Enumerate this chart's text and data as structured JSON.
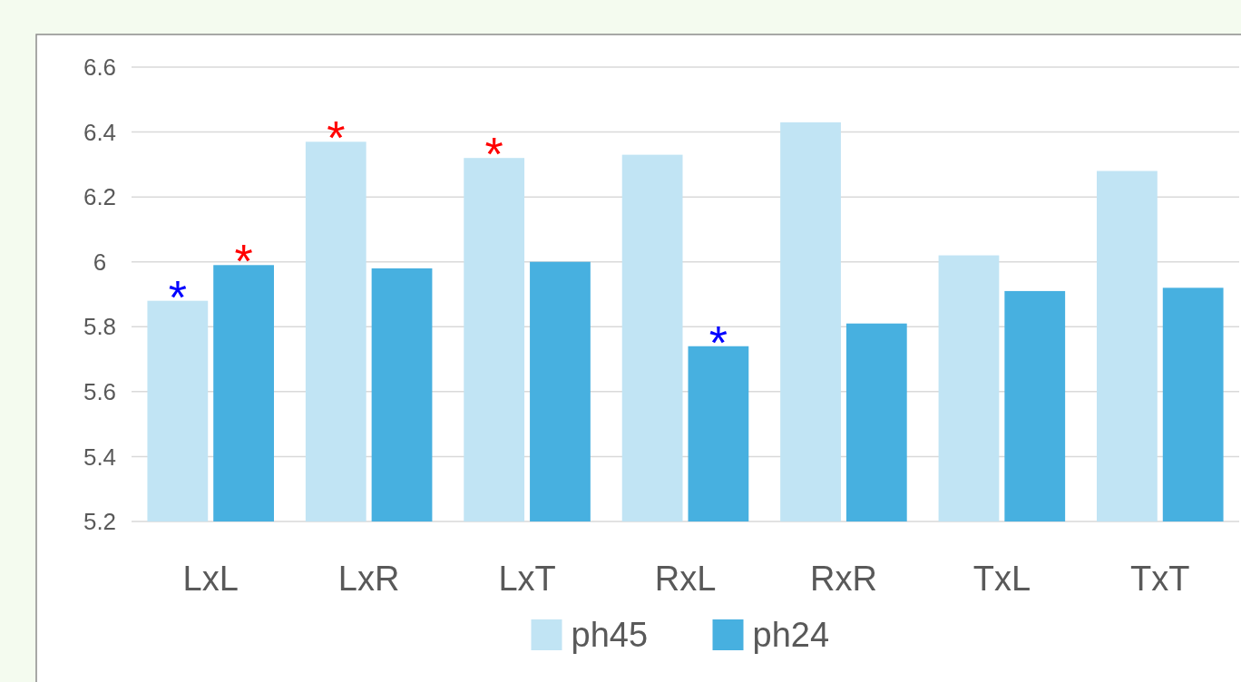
{
  "chart_data": {
    "type": "bar",
    "categories": [
      "LxL",
      "LxR",
      "LxT",
      "RxL",
      "RxR",
      "TxL",
      "TxT"
    ],
    "series": [
      {
        "name": "ph45",
        "color": "#c1e4f4",
        "values": [
          5.88,
          6.37,
          6.32,
          6.33,
          6.43,
          6.02,
          6.28
        ]
      },
      {
        "name": "ph24",
        "color": "#47b0e0",
        "values": [
          5.99,
          5.98,
          6.0,
          5.74,
          5.81,
          5.91,
          5.92
        ]
      }
    ],
    "ylim": [
      5.2,
      6.6
    ],
    "yticks": [
      5.2,
      5.4,
      5.6,
      5.8,
      {
        "value": 6,
        "label": "6"
      },
      6.2,
      6.4,
      6.6
    ],
    "grid": "y",
    "legend": "bottom",
    "annotations": [
      {
        "text": "*",
        "x": "LxL",
        "y": 5.88
      },
      {
        "text": "*",
        "x": "LxL",
        "y": 5.99
      },
      {
        "text": "*",
        "x": "LxR",
        "y": 6.37
      },
      {
        "text": "*",
        "x": "LxT",
        "y": 6.32
      },
      {
        "text": "*",
        "x": "RxL",
        "y": 5.74
      }
    ]
  }
}
